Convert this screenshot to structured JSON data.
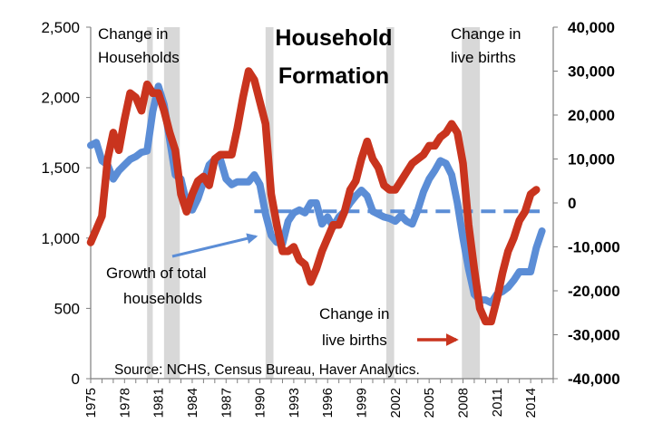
{
  "chart_data": {
    "type": "line",
    "title_lines": [
      "Household",
      "Formation"
    ],
    "source": "Source: NCHS, Census Bureau, Haver Analytics.",
    "left_axis": {
      "ylim": [
        0,
        2500
      ],
      "ticks": [
        "0",
        "500",
        "1,000",
        "1,500",
        "2,000",
        "2,500"
      ]
    },
    "right_axis": {
      "ylim": [
        -40000,
        40000
      ],
      "ticks": [
        "-40,000",
        "-30,000",
        "-20,000",
        "-10,000",
        "0",
        "10,000",
        "20,000",
        "30,000",
        "40,000"
      ]
    },
    "x_ticks": [
      "1975",
      "1978",
      "1981",
      "1984",
      "1987",
      "1990",
      "1993",
      "1996",
      "1999",
      "2002",
      "2005",
      "2008",
      "2011",
      "2014"
    ],
    "xlim": [
      1975,
      2016
    ],
    "recessions": [
      [
        1980.0,
        1980.5
      ],
      [
        1981.5,
        1982.9
      ],
      [
        1990.5,
        1991.2
      ],
      [
        2001.2,
        2001.9
      ],
      [
        2007.9,
        2009.5
      ]
    ],
    "colors": {
      "households": "#5B8DD6",
      "births": "#C9341E",
      "recession": "#D8D8D8",
      "dashed": "#5B8DD6",
      "arrow_blue": "#5B8DD6",
      "arrow_red": "#C9341E"
    },
    "annotations": {
      "change_households": [
        "Change in",
        "Households"
      ],
      "change_births_top": [
        "Change in",
        "live births"
      ],
      "growth_households": [
        "Growth of total",
        "households"
      ],
      "change_births_bottom": [
        "Change in",
        "live births"
      ]
    },
    "dashed_line": {
      "x": [
        1989.5,
        2014.8
      ],
      "y_left": 1190
    },
    "series": [
      {
        "name": "Growth of total households",
        "axis": "left",
        "x": [
          1975.0,
          1975.5,
          1976.0,
          1976.5,
          1977.0,
          1977.5,
          1978.0,
          1978.5,
          1979.0,
          1979.5,
          1980.0,
          1980.5,
          1981.0,
          1981.5,
          1982.0,
          1982.5,
          1983.0,
          1983.5,
          1984.0,
          1984.5,
          1985.0,
          1985.5,
          1986.0,
          1986.5,
          1987.0,
          1987.5,
          1988.0,
          1988.5,
          1989.0,
          1989.5,
          1990.0,
          1990.5,
          1991.0,
          1991.5,
          1992.0,
          1992.5,
          1993.0,
          1993.5,
          1994.0,
          1994.5,
          1995.0,
          1995.5,
          1996.0,
          1996.5,
          1997.0,
          1997.5,
          1998.0,
          1998.5,
          1999.0,
          1999.5,
          2000.0,
          2000.5,
          2001.0,
          2001.5,
          2002.0,
          2002.5,
          2003.0,
          2003.5,
          2004.0,
          2004.5,
          2005.0,
          2005.5,
          2006.0,
          2006.5,
          2007.0,
          2007.5,
          2008.0,
          2008.5,
          2009.0,
          2009.5,
          2010.0,
          2010.5,
          2011.0,
          2011.5,
          2012.0,
          2012.5,
          2013.0,
          2013.5,
          2014.0,
          2014.5,
          2015.0
        ],
        "values": [
          1660,
          1680,
          1550,
          1520,
          1420,
          1480,
          1520,
          1560,
          1580,
          1610,
          1620,
          1900,
          2080,
          1950,
          1700,
          1450,
          1420,
          1250,
          1200,
          1280,
          1400,
          1520,
          1560,
          1560,
          1420,
          1380,
          1400,
          1400,
          1400,
          1450,
          1380,
          1170,
          1020,
          970,
          960,
          1120,
          1180,
          1200,
          1180,
          1250,
          1250,
          1100,
          1150,
          1080,
          1150,
          1190,
          1250,
          1300,
          1340,
          1300,
          1190,
          1170,
          1150,
          1140,
          1120,
          1160,
          1120,
          1100,
          1200,
          1330,
          1420,
          1480,
          1550,
          1530,
          1450,
          1250,
          1000,
          780,
          600,
          560,
          560,
          540,
          600,
          620,
          650,
          700,
          760,
          760,
          760,
          930,
          1050
        ]
      },
      {
        "name": "Change in live births",
        "axis": "right",
        "x": [
          1975.0,
          1975.5,
          1976.0,
          1976.5,
          1977.0,
          1977.5,
          1978.0,
          1978.5,
          1979.0,
          1979.5,
          1980.0,
          1980.5,
          1981.0,
          1981.5,
          1982.0,
          1982.5,
          1983.0,
          1983.5,
          1984.0,
          1984.5,
          1985.0,
          1985.5,
          1986.0,
          1986.5,
          1987.0,
          1987.5,
          1988.0,
          1988.5,
          1989.0,
          1989.5,
          1990.0,
          1990.5,
          1991.0,
          1991.5,
          1992.0,
          1992.5,
          1993.0,
          1993.5,
          1994.0,
          1994.5,
          1995.0,
          1995.5,
          1996.0,
          1996.5,
          1997.0,
          1997.5,
          1998.0,
          1998.5,
          1999.0,
          1999.5,
          2000.0,
          2000.5,
          2001.0,
          2001.5,
          2002.0,
          2002.5,
          2003.0,
          2003.5,
          2004.0,
          2004.5,
          2005.0,
          2005.5,
          2006.0,
          2006.5,
          2007.0,
          2007.5,
          2008.0,
          2008.5,
          2009.0,
          2009.5,
          2010.0,
          2010.5,
          2011.0,
          2011.5,
          2012.0,
          2012.5,
          2013.0,
          2013.5,
          2014.0,
          2014.5
        ],
        "values": [
          -9000,
          -6000,
          -3000,
          10000,
          16000,
          12000,
          19000,
          25000,
          24000,
          21000,
          27000,
          25000,
          25000,
          21000,
          16000,
          12000,
          2000,
          -2000,
          2000,
          5000,
          6000,
          4000,
          10000,
          11000,
          11000,
          11000,
          17000,
          24000,
          30000,
          28000,
          23000,
          18000,
          2000,
          -5000,
          -11000,
          -11000,
          -10000,
          -13000,
          -14000,
          -18000,
          -15000,
          -11000,
          -8000,
          -5000,
          -5000,
          -2000,
          3000,
          5000,
          10000,
          14000,
          10000,
          8000,
          4000,
          3000,
          3000,
          5000,
          7000,
          9000,
          10000,
          11000,
          13000,
          13000,
          15000,
          16000,
          18000,
          16000,
          9000,
          -5000,
          -15000,
          -24000,
          -27000,
          -27000,
          -22000,
          -16000,
          -11000,
          -8000,
          -4000,
          -2000,
          2000,
          3000
        ]
      }
    ]
  }
}
